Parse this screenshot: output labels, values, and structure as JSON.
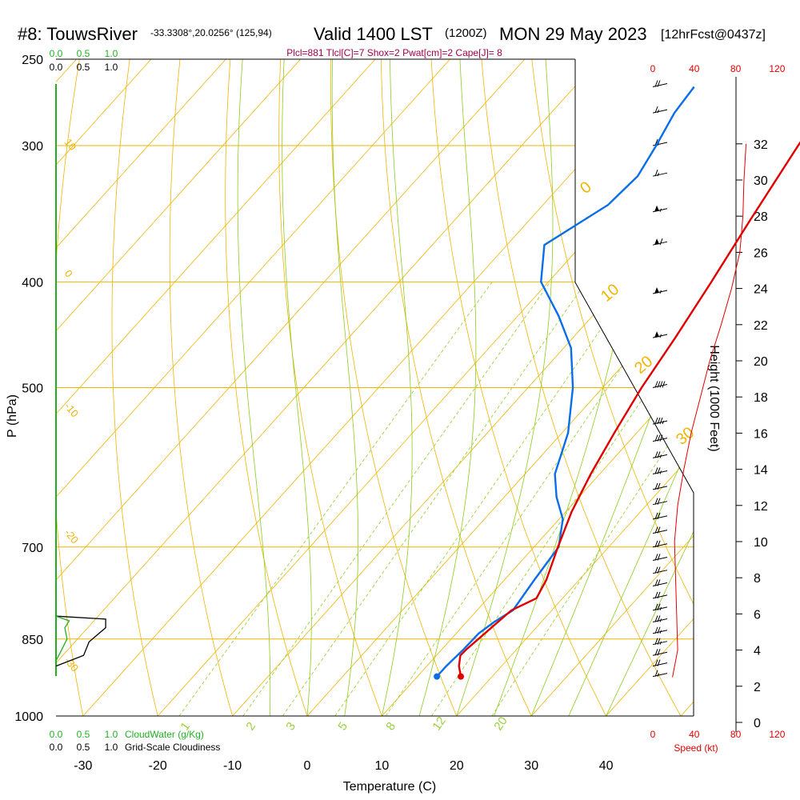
{
  "header": {
    "station": "#8: TouwsRiver",
    "coords": "-33.3308°,20.0256° (125,94)",
    "valid": "Valid 1400 LST",
    "zulu": "(1200Z)",
    "date": "MON 29 May 2023",
    "forecast": "[12hrFcst@0437z]",
    "indices": "Plcl=881 Tlcl[C]=7 Shox=2 Pwat[cm]=2 Cape[J]= 8"
  },
  "chart_data": {
    "type": "line",
    "diagram": "skew-T log-P",
    "xlabel": "Temperature (C)",
    "ylabel": "P (hPa)",
    "height_label": "Height (1000 Feet)",
    "x_ticks": [
      -30,
      -20,
      -10,
      0,
      10,
      20,
      30,
      40
    ],
    "p_ticks": [
      250,
      300,
      400,
      500,
      700,
      850,
      1000
    ],
    "height_ticks": [
      0,
      2,
      4,
      6,
      8,
      10,
      12,
      14,
      16,
      18,
      20,
      22,
      24,
      26,
      28,
      30,
      32
    ],
    "speed_ticks": [
      0,
      40,
      80,
      120
    ],
    "speed_label": "Speed (kt)",
    "fraction_ticks": [
      "0.0",
      "0.5",
      "1.0"
    ],
    "cloudwater_label": "CloudWater (g/Kg)",
    "cloudiness_label": "Grid-Scale Cloudiness",
    "dry_adiabat_labels": [
      "10",
      "0",
      "-10",
      "-20",
      "-30",
      "0",
      "10",
      "20",
      "30"
    ],
    "mixing_ratio_labels": [
      "1",
      "2",
      "3",
      "5",
      "8",
      "12",
      "20"
    ],
    "temperature": [
      {
        "p": 920,
        "t": 15.8
      },
      {
        "p": 900,
        "t": 14.3
      },
      {
        "p": 880,
        "t": 13.2
      },
      {
        "p": 868,
        "t": 13.3
      },
      {
        "p": 800,
        "t": 14.6
      },
      {
        "p": 780,
        "t": 16.5
      },
      {
        "p": 750,
        "t": 15.6
      },
      {
        "p": 700,
        "t": 13.2
      },
      {
        "p": 650,
        "t": 10.8
      },
      {
        "p": 600,
        "t": 8.8
      },
      {
        "p": 550,
        "t": 7.0
      },
      {
        "p": 500,
        "t": 5.2
      },
      {
        "p": 450,
        "t": 3.7
      },
      {
        "p": 400,
        "t": 1.8
      },
      {
        "p": 350,
        "t": -0.5
      },
      {
        "p": 300,
        "t": -3.0
      },
      {
        "p": 280,
        "t": -3.9
      },
      {
        "p": 265,
        "t": -4.3
      }
    ],
    "dewpoint": [
      {
        "p": 920,
        "t": 12.6
      },
      {
        "p": 900,
        "t": 12.6
      },
      {
        "p": 870,
        "t": 12.9
      },
      {
        "p": 840,
        "t": 13.0
      },
      {
        "p": 820,
        "t": 13.7
      },
      {
        "p": 800,
        "t": 14.8
      },
      {
        "p": 750,
        "t": 14.0
      },
      {
        "p": 700,
        "t": 13.3
      },
      {
        "p": 660,
        "t": 10.5
      },
      {
        "p": 630,
        "t": 7.0
      },
      {
        "p": 600,
        "t": 4.0
      },
      {
        "p": 550,
        "t": 0.8
      },
      {
        "p": 500,
        "t": -4.0
      },
      {
        "p": 460,
        "t": -9.0
      },
      {
        "p": 430,
        "t": -14.5
      },
      {
        "p": 400,
        "t": -21.0
      },
      {
        "p": 370,
        "t": -25.0
      },
      {
        "p": 340,
        "t": -21.3
      },
      {
        "p": 320,
        "t": -20.8
      },
      {
        "p": 300,
        "t": -22.0
      },
      {
        "p": 280,
        "t": -23.5
      },
      {
        "p": 265,
        "t": -24.0
      }
    ],
    "surface": {
      "p": 920,
      "t": 15.8,
      "td": 12.6
    },
    "height_profile_kft": [
      {
        "kft": 2.5,
        "speed": 19
      },
      {
        "kft": 4,
        "speed": 24
      },
      {
        "kft": 6,
        "speed": 23
      },
      {
        "kft": 8,
        "speed": 22
      },
      {
        "kft": 10,
        "speed": 21
      },
      {
        "kft": 12,
        "speed": 24
      },
      {
        "kft": 14,
        "speed": 30
      },
      {
        "kft": 16,
        "speed": 37
      },
      {
        "kft": 18,
        "speed": 46
      },
      {
        "kft": 20,
        "speed": 55
      },
      {
        "kft": 22,
        "speed": 66
      },
      {
        "kft": 24,
        "speed": 76
      },
      {
        "kft": 26,
        "speed": 84
      },
      {
        "kft": 28,
        "speed": 87
      },
      {
        "kft": 30,
        "speed": 88
      },
      {
        "kft": 32,
        "speed": 90
      }
    ],
    "wind_barbs": [
      {
        "p": 265,
        "spd": 20
      },
      {
        "p": 280,
        "spd": 15
      },
      {
        "p": 300,
        "spd": 15
      },
      {
        "p": 320,
        "spd": 15
      },
      {
        "p": 345,
        "spd": 55
      },
      {
        "p": 370,
        "spd": 60
      },
      {
        "p": 410,
        "spd": 55
      },
      {
        "p": 450,
        "spd": 55
      },
      {
        "p": 500,
        "spd": 40
      },
      {
        "p": 540,
        "spd": 35
      },
      {
        "p": 560,
        "spd": 30
      },
      {
        "p": 580,
        "spd": 25
      },
      {
        "p": 600,
        "spd": 25
      },
      {
        "p": 620,
        "spd": 20
      },
      {
        "p": 640,
        "spd": 20
      },
      {
        "p": 660,
        "spd": 20
      },
      {
        "p": 680,
        "spd": 20
      },
      {
        "p": 700,
        "spd": 20
      },
      {
        "p": 720,
        "spd": 20
      },
      {
        "p": 740,
        "spd": 20
      },
      {
        "p": 760,
        "spd": 20
      },
      {
        "p": 780,
        "spd": 20
      },
      {
        "p": 800,
        "spd": 25
      },
      {
        "p": 820,
        "spd": 25
      },
      {
        "p": 840,
        "spd": 25
      },
      {
        "p": 860,
        "spd": 25
      },
      {
        "p": 880,
        "spd": 20
      },
      {
        "p": 900,
        "spd": 20
      },
      {
        "p": 920,
        "spd": 15
      }
    ],
    "cloud_fraction": [
      {
        "p": 810,
        "f": 0.0
      },
      {
        "p": 815,
        "f": 0.45
      },
      {
        "p": 830,
        "f": 0.45
      },
      {
        "p": 855,
        "f": 0.3
      },
      {
        "p": 880,
        "f": 0.25
      },
      {
        "p": 900,
        "f": 0.0
      }
    ],
    "cloud_water": [
      {
        "p": 810,
        "f": 0.0
      },
      {
        "p": 818,
        "f": 0.12
      },
      {
        "p": 830,
        "f": 0.08
      },
      {
        "p": 850,
        "f": 0.1
      },
      {
        "p": 870,
        "f": 0.05
      },
      {
        "p": 890,
        "f": 0.0
      }
    ],
    "colors": {
      "temperature": "#e00000",
      "dewpoint": "#0a6ee8",
      "isotherm": "#f0b400",
      "moist_adiabat": "#8ccc1a",
      "mixing_ratio": "#9ad23c",
      "cloud_water": "#22b022",
      "speed": "#e00000",
      "indices": "#a0004a"
    }
  }
}
